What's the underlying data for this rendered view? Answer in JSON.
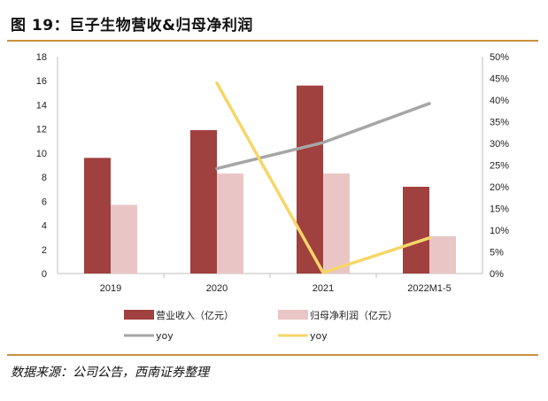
{
  "header": {
    "title": "图 19：巨子生物营收&归母净利润"
  },
  "footer": {
    "source": "数据来源：公司公告，西南证券整理"
  },
  "colors": {
    "revenue": "#a0403f",
    "net_profit": "#e9c6c5",
    "revenue_yoy": "#a6a6a6",
    "profit_yoy": "#f7d667",
    "rule": "#c8913f"
  },
  "chart_data": {
    "type": "bar",
    "categories": [
      "2019",
      "2020",
      "2021",
      "2022M1-5"
    ],
    "series": [
      {
        "name": "营业收入（亿元）",
        "type": "bar",
        "axis": "left",
        "values": [
          9.6,
          11.9,
          15.6,
          7.2
        ]
      },
      {
        "name": "归母净利润（亿元）",
        "type": "bar",
        "axis": "left",
        "values": [
          5.7,
          8.3,
          8.3,
          3.1
        ]
      },
      {
        "name": "yoy",
        "type": "line",
        "axis": "right",
        "color": "#a6a6a6",
        "values": [
          null,
          24.2,
          30.2,
          39.2
        ]
      },
      {
        "name": "yoy",
        "type": "line",
        "axis": "right",
        "color": "#f7d667",
        "values": [
          null,
          43.9,
          0.2,
          8.2
        ]
      }
    ],
    "y_left": {
      "lim": [
        0,
        18
      ],
      "ticks": [
        "0",
        "2",
        "4",
        "6",
        "8",
        "10",
        "12",
        "14",
        "16",
        "18"
      ]
    },
    "y_right": {
      "lim": [
        0,
        50
      ],
      "ticks": [
        "0%",
        "5%",
        "10%",
        "15%",
        "20%",
        "25%",
        "30%",
        "35%",
        "40%",
        "45%",
        "50%"
      ]
    },
    "legend_position": "bottom",
    "grid": false
  }
}
